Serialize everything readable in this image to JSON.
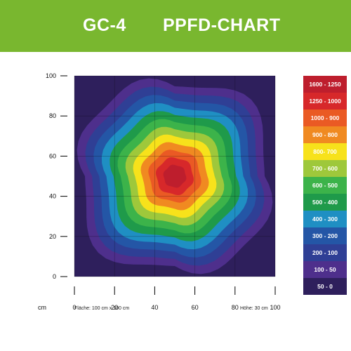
{
  "header": {
    "product": "GC-4",
    "chart_title": "PPFD-CHART"
  },
  "footer": {
    "area": "Fläche: 100 cm x 100 cm",
    "height": "Höhe: 30 cm"
  },
  "chart_data": {
    "type": "heatmap",
    "title": "PPFD-CHART",
    "xlabel": "cm",
    "ylabel": "",
    "xlim": [
      0,
      100
    ],
    "ylim": [
      0,
      100
    ],
    "x_ticks": [
      0,
      20,
      40,
      60,
      80,
      100
    ],
    "y_ticks": [
      0,
      20,
      40,
      60,
      80,
      100
    ],
    "grid": true,
    "peak_center": [
      50,
      50
    ],
    "legend_position": "right",
    "legend": [
      {
        "label": "1600 - 1250",
        "color": "#be1e2d"
      },
      {
        "label": "1250 - 1000",
        "color": "#d7282a"
      },
      {
        "label": "1000 - 900",
        "color": "#ea5a24"
      },
      {
        "label": "900 - 800",
        "color": "#f08a21"
      },
      {
        "label": "800- 700",
        "color": "#f7e21b"
      },
      {
        "label": "700 - 600",
        "color": "#9ec83b"
      },
      {
        "label": "600 - 500",
        "color": "#3cb34a"
      },
      {
        "label": "500 - 400",
        "color": "#1f9a4a"
      },
      {
        "label": "400 - 300",
        "color": "#1f8fc3"
      },
      {
        "label": "300 - 200",
        "color": "#2456a6"
      },
      {
        "label": "200 - 100",
        "color": "#2f3f95"
      },
      {
        "label": "100 - 50",
        "color": "#4e2f8c"
      },
      {
        "label": "50 - 0",
        "color": "#2e1f5c"
      }
    ]
  }
}
